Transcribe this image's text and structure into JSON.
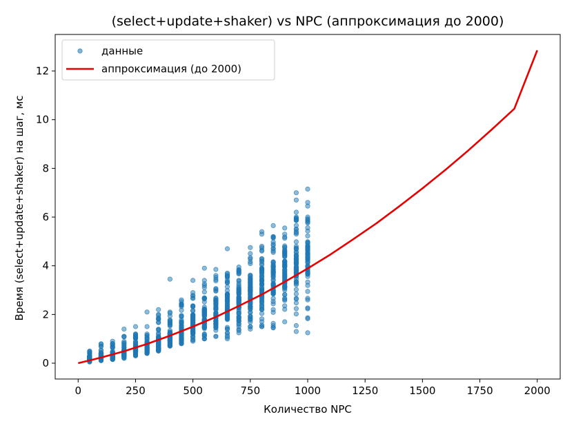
{
  "chart_data": {
    "type": "scatter",
    "title": "(select+update+shaker) vs NPC (аппроксимация до 2000)",
    "xlabel": "Количество NPC",
    "ylabel": "Время (select+update+shaker) на шаг, мс",
    "xlim": [
      -100,
      2100
    ],
    "ylim": [
      -0.65,
      13.5
    ],
    "xticks": [
      0,
      250,
      500,
      750,
      1000,
      1250,
      1500,
      1750,
      2000
    ],
    "yticks": [
      0,
      2,
      4,
      6,
      8,
      10,
      12
    ],
    "grid": false,
    "legend_position": "top-left",
    "colors": {
      "scatter": "#1f77b4",
      "fit": "#e60000"
    },
    "series": [
      {
        "name": "данные",
        "type": "scatter",
        "groups": [
          {
            "x": 50,
            "min": 0.05,
            "q1": 0.12,
            "q3": 0.3,
            "max": 0.5,
            "outliers": []
          },
          {
            "x": 100,
            "min": 0.1,
            "q1": 0.2,
            "q3": 0.42,
            "max": 0.8,
            "outliers": []
          },
          {
            "x": 150,
            "min": 0.15,
            "q1": 0.22,
            "q3": 0.45,
            "max": 0.9,
            "outliers": []
          },
          {
            "x": 200,
            "min": 0.2,
            "q1": 0.3,
            "q3": 0.55,
            "max": 1.1,
            "outliers": [
              1.4
            ]
          },
          {
            "x": 250,
            "min": 0.3,
            "q1": 0.4,
            "q3": 0.7,
            "max": 1.2,
            "outliers": [
              1.5
            ]
          },
          {
            "x": 300,
            "min": 0.4,
            "q1": 0.55,
            "q3": 0.9,
            "max": 1.5,
            "outliers": [
              2.1
            ]
          },
          {
            "x": 350,
            "min": 0.5,
            "q1": 0.6,
            "q3": 1.1,
            "max": 2.0,
            "outliers": [
              2.2
            ]
          },
          {
            "x": 400,
            "min": 0.7,
            "q1": 0.8,
            "q3": 1.3,
            "max": 2.1,
            "outliers": [
              3.45
            ]
          },
          {
            "x": 450,
            "min": 0.8,
            "q1": 1.0,
            "q3": 1.7,
            "max": 2.6,
            "outliers": []
          },
          {
            "x": 500,
            "min": 0.9,
            "q1": 1.2,
            "q3": 2.0,
            "max": 2.9,
            "outliers": [
              3.4
            ]
          },
          {
            "x": 550,
            "min": 1.0,
            "q1": 1.4,
            "q3": 2.3,
            "max": 3.4,
            "outliers": [
              3.9
            ]
          },
          {
            "x": 600,
            "min": 1.1,
            "q1": 1.6,
            "q3": 2.6,
            "max": 3.6,
            "outliers": [
              3.85
            ]
          },
          {
            "x": 650,
            "min": 1.0,
            "q1": 1.8,
            "q3": 2.9,
            "max": 3.7,
            "outliers": [
              4.7
            ]
          },
          {
            "x": 700,
            "min": 1.25,
            "q1": 2.0,
            "q3": 3.2,
            "max": 3.95,
            "outliers": []
          },
          {
            "x": 750,
            "min": 1.4,
            "q1": 2.2,
            "q3": 3.5,
            "max": 4.5,
            "outliers": [
              4.75
            ]
          },
          {
            "x": 800,
            "min": 1.5,
            "q1": 2.5,
            "q3": 3.9,
            "max": 4.8,
            "outliers": [
              5.3,
              5.4
            ]
          },
          {
            "x": 850,
            "min": 1.45,
            "q1": 2.8,
            "q3": 4.0,
            "max": 5.2,
            "outliers": [
              5.65
            ]
          },
          {
            "x": 900,
            "min": 1.7,
            "q1": 3.0,
            "q3": 4.2,
            "max": 5.3,
            "outliers": [
              5.55
            ]
          },
          {
            "x": 950,
            "min": 1.3,
            "q1": 3.2,
            "q3": 4.6,
            "max": 6.0,
            "outliers": [
              6.2,
              6.7,
              7.0
            ]
          },
          {
            "x": 1000,
            "min": 1.25,
            "q1": 3.5,
            "q3": 4.8,
            "max": 6.0,
            "outliers": [
              6.45,
              6.6,
              7.15,
              2.6
            ]
          }
        ]
      },
      {
        "name": "аппроксимация (до 2000)",
        "type": "line",
        "x": [
          0,
          100,
          200,
          300,
          400,
          500,
          600,
          700,
          800,
          900,
          1000,
          1100,
          1200,
          1300,
          1400,
          1500,
          1600,
          1700,
          1800,
          1900,
          2000
        ],
        "y": [
          0.0,
          0.23,
          0.49,
          0.79,
          1.13,
          1.5,
          1.9,
          2.35,
          2.82,
          3.34,
          3.89,
          4.47,
          5.1,
          5.75,
          6.45,
          7.18,
          7.94,
          8.74,
          9.58,
          10.45,
          12.85
        ]
      }
    ]
  }
}
